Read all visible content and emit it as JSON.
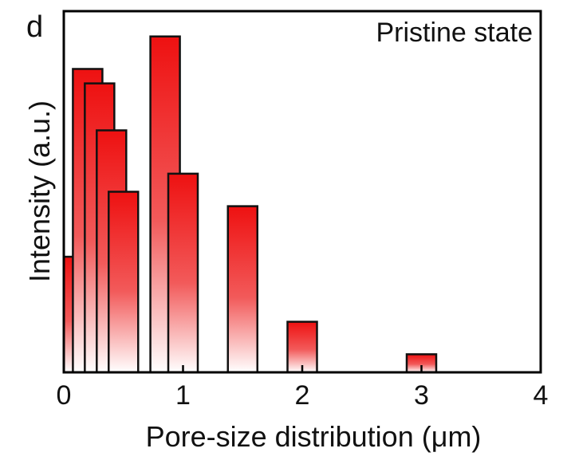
{
  "chart_data": {
    "type": "bar",
    "panel_label": "d",
    "title": "Pristine state",
    "xlabel": "Pore-size distribution (μm)",
    "ylabel": "Intensity (a.u.)",
    "xlim": [
      0,
      4
    ],
    "ylim": [
      0,
      1
    ],
    "xticks": [
      "0",
      "1",
      "2",
      "3",
      "4"
    ],
    "grid": false,
    "bar_color": "#ee1111",
    "bars": [
      {
        "x": 0.03,
        "value": 0.32
      },
      {
        "x": 0.2,
        "value": 0.84
      },
      {
        "x": 0.3,
        "value": 0.8
      },
      {
        "x": 0.4,
        "value": 0.67
      },
      {
        "x": 0.5,
        "value": 0.5
      },
      {
        "x": 0.85,
        "value": 0.93
      },
      {
        "x": 1.0,
        "value": 0.55
      },
      {
        "x": 1.5,
        "value": 0.46
      },
      {
        "x": 2.0,
        "value": 0.14
      },
      {
        "x": 3.0,
        "value": 0.05
      }
    ]
  }
}
